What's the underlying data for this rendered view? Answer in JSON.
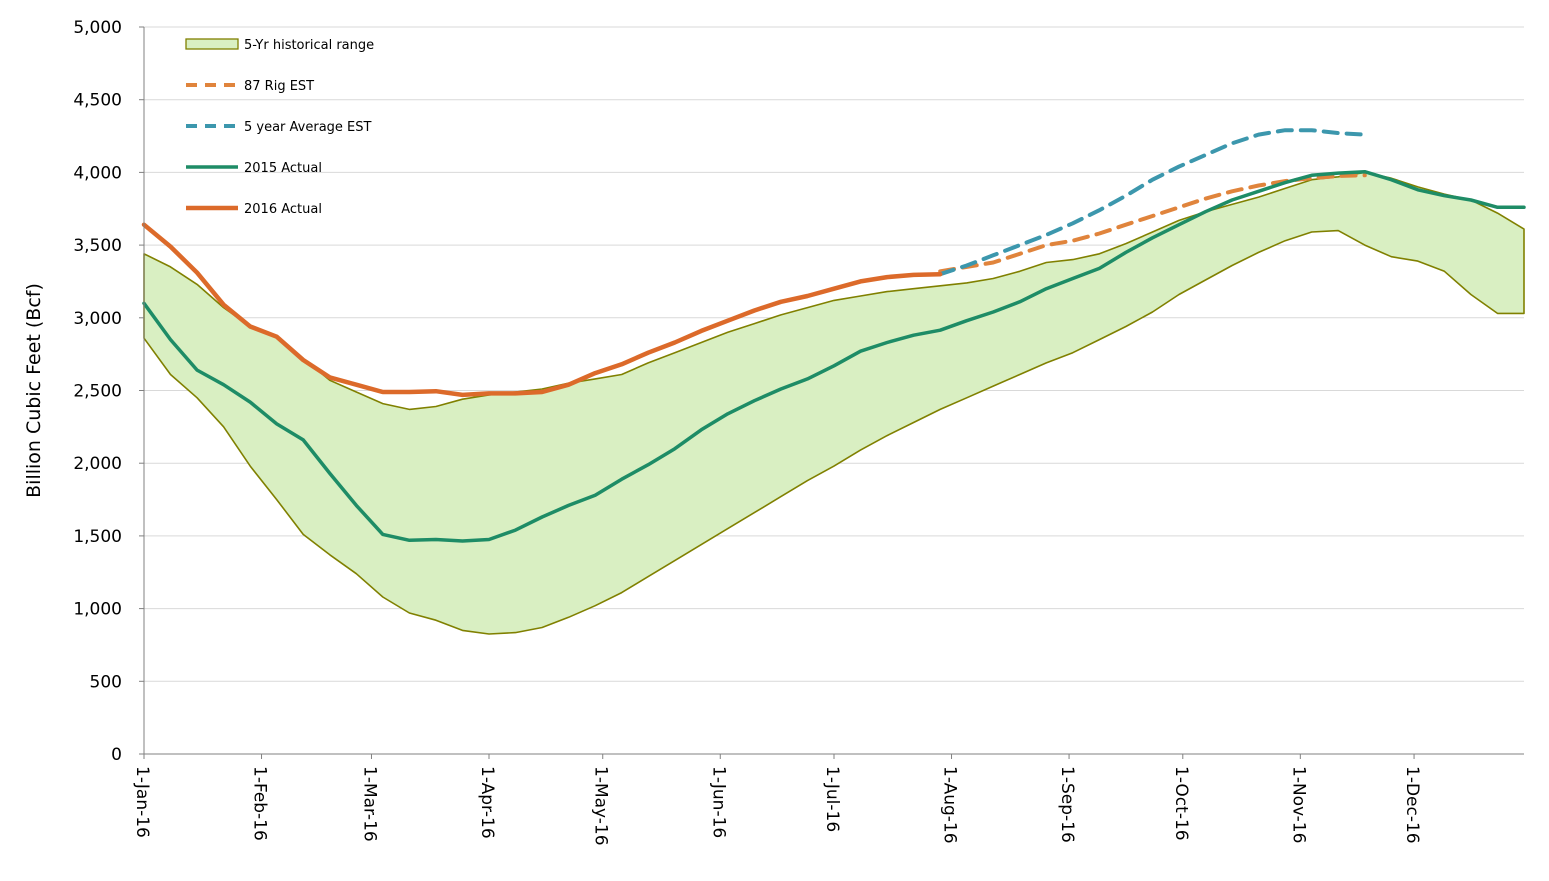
{
  "chart_data": {
    "type": "line",
    "title": "",
    "ylabel": "Billion Cubic Feet (Bcf)",
    "xlabel": "",
    "ylim": [
      0,
      5000
    ],
    "yticks": [
      0,
      500,
      1000,
      1500,
      2000,
      2500,
      3000,
      3500,
      4000,
      4500,
      5000
    ],
    "ytick_labels": [
      "0",
      "500",
      "1,000",
      "1,500",
      "2,000",
      "2,500",
      "3,000",
      "3,500",
      "4,000",
      "4,500",
      "5,000"
    ],
    "xlim": [
      "2016-01-01",
      "2016-12-30"
    ],
    "xticks": [
      "2016-01-01",
      "2016-02-01",
      "2016-03-01",
      "2016-04-01",
      "2016-05-01",
      "2016-06-01",
      "2016-07-01",
      "2016-08-01",
      "2016-09-01",
      "2016-10-01",
      "2016-11-01",
      "2016-12-01"
    ],
    "xtick_labels": [
      "1-Jan-16",
      "1-Feb-16",
      "1-Mar-16",
      "1-Apr-16",
      "1-May-16",
      "1-Jun-16",
      "1-Jul-16",
      "1-Aug-16",
      "1-Sep-16",
      "1-Oct-16",
      "1-Nov-16",
      "1-Dec-16"
    ],
    "grid": "horizontal",
    "legend_position": "top-left",
    "range": {
      "name": "5-Yr historical range",
      "fill": "#d9efc2",
      "stroke": "#808000",
      "x": [
        "2016-01-01",
        "2016-01-08",
        "2016-01-15",
        "2016-01-22",
        "2016-01-29",
        "2016-02-05",
        "2016-02-12",
        "2016-02-19",
        "2016-02-26",
        "2016-03-04",
        "2016-03-11",
        "2016-03-18",
        "2016-03-25",
        "2016-04-01",
        "2016-04-08",
        "2016-04-15",
        "2016-04-22",
        "2016-04-29",
        "2016-05-06",
        "2016-05-13",
        "2016-05-20",
        "2016-05-27",
        "2016-06-03",
        "2016-06-10",
        "2016-06-17",
        "2016-06-24",
        "2016-07-01",
        "2016-07-08",
        "2016-07-15",
        "2016-07-22",
        "2016-07-29",
        "2016-08-05",
        "2016-08-12",
        "2016-08-19",
        "2016-08-26",
        "2016-09-02",
        "2016-09-09",
        "2016-09-16",
        "2016-09-23",
        "2016-09-30",
        "2016-10-07",
        "2016-10-14",
        "2016-10-21",
        "2016-10-28",
        "2016-11-04",
        "2016-11-11",
        "2016-11-18",
        "2016-11-25",
        "2016-12-02",
        "2016-12-09",
        "2016-12-16",
        "2016-12-23",
        "2016-12-30"
      ],
      "low": [
        2860,
        2610,
        2450,
        2250,
        1980,
        1750,
        1510,
        1370,
        1240,
        1080,
        970,
        920,
        850,
        825,
        835,
        870,
        940,
        1020,
        1110,
        1220,
        1330,
        1440,
        1550,
        1660,
        1770,
        1880,
        1980,
        2090,
        2190,
        2280,
        2370,
        2450,
        2530,
        2610,
        2690,
        2760,
        2850,
        2940,
        3040,
        3160,
        3260,
        3360,
        3450,
        3530,
        3590,
        3600,
        3500,
        3420,
        3390,
        3320,
        3160,
        3030,
        3030
      ],
      "high": [
        3440,
        3350,
        3230,
        3070,
        2940,
        2870,
        2720,
        2570,
        2490,
        2410,
        2370,
        2390,
        2440,
        2470,
        2490,
        2510,
        2550,
        2580,
        2610,
        2690,
        2760,
        2830,
        2900,
        2960,
        3020,
        3070,
        3120,
        3150,
        3180,
        3200,
        3220,
        3240,
        3270,
        3320,
        3380,
        3400,
        3440,
        3510,
        3590,
        3670,
        3730,
        3780,
        3830,
        3890,
        3950,
        3970,
        4000,
        3960,
        3900,
        3850,
        3810,
        3720,
        3610
      ]
    },
    "series": [
      {
        "name": "87 Rig EST",
        "color": "#e0843c",
        "dash": true,
        "x": [
          "2016-07-29",
          "2016-08-05",
          "2016-08-12",
          "2016-08-19",
          "2016-08-26",
          "2016-09-02",
          "2016-09-09",
          "2016-09-16",
          "2016-09-23",
          "2016-09-30",
          "2016-10-07",
          "2016-10-14",
          "2016-10-21",
          "2016-10-28",
          "2016-11-04",
          "2016-11-11",
          "2016-11-18"
        ],
        "values": [
          3320,
          3350,
          3380,
          3440,
          3500,
          3530,
          3580,
          3640,
          3700,
          3760,
          3820,
          3870,
          3910,
          3940,
          3960,
          3975,
          3980
        ]
      },
      {
        "name": "5 year Average EST",
        "color": "#3c97ad",
        "dash": true,
        "x": [
          "2016-07-29",
          "2016-08-05",
          "2016-08-12",
          "2016-08-19",
          "2016-08-26",
          "2016-09-02",
          "2016-09-09",
          "2016-09-16",
          "2016-09-23",
          "2016-09-30",
          "2016-10-07",
          "2016-10-14",
          "2016-10-21",
          "2016-10-28",
          "2016-11-04",
          "2016-11-11",
          "2016-11-18"
        ],
        "values": [
          3300,
          3360,
          3430,
          3500,
          3570,
          3650,
          3740,
          3840,
          3950,
          4040,
          4120,
          4200,
          4260,
          4290,
          4290,
          4270,
          4260
        ]
      },
      {
        "name": "2015 Actual",
        "color": "#1e8c66",
        "dash": false,
        "x": [
          "2016-01-01",
          "2016-01-08",
          "2016-01-15",
          "2016-01-22",
          "2016-01-29",
          "2016-02-05",
          "2016-02-12",
          "2016-02-19",
          "2016-02-26",
          "2016-03-04",
          "2016-03-11",
          "2016-03-18",
          "2016-03-25",
          "2016-04-01",
          "2016-04-08",
          "2016-04-15",
          "2016-04-22",
          "2016-04-29",
          "2016-05-06",
          "2016-05-13",
          "2016-05-20",
          "2016-05-27",
          "2016-06-03",
          "2016-06-10",
          "2016-06-17",
          "2016-06-24",
          "2016-07-01",
          "2016-07-08",
          "2016-07-15",
          "2016-07-22",
          "2016-07-29",
          "2016-08-05",
          "2016-08-12",
          "2016-08-19",
          "2016-08-26",
          "2016-09-02",
          "2016-09-09",
          "2016-09-16",
          "2016-09-23",
          "2016-09-30",
          "2016-10-07",
          "2016-10-14",
          "2016-10-21",
          "2016-10-28",
          "2016-11-04",
          "2016-11-11",
          "2016-11-18",
          "2016-11-25",
          "2016-12-02",
          "2016-12-09",
          "2016-12-16",
          "2016-12-23",
          "2016-12-30"
        ],
        "values": [
          3100,
          2850,
          2640,
          2540,
          2420,
          2270,
          2160,
          1930,
          1710,
          1510,
          1470,
          1475,
          1465,
          1475,
          1540,
          1630,
          1710,
          1780,
          1890,
          1990,
          2100,
          2230,
          2340,
          2430,
          2510,
          2580,
          2670,
          2770,
          2830,
          2880,
          2915,
          2980,
          3040,
          3110,
          3200,
          3270,
          3340,
          3450,
          3550,
          3640,
          3730,
          3810,
          3870,
          3930,
          3980,
          3995,
          4005,
          3950,
          3880,
          3840,
          3810,
          3760,
          3760
        ]
      },
      {
        "name": "2016 Actual",
        "color": "#dc6a2a",
        "dash": false,
        "x": [
          "2016-01-01",
          "2016-01-08",
          "2016-01-15",
          "2016-01-22",
          "2016-01-29",
          "2016-02-05",
          "2016-02-12",
          "2016-02-19",
          "2016-02-26",
          "2016-03-04",
          "2016-03-11",
          "2016-03-18",
          "2016-03-25",
          "2016-04-01",
          "2016-04-08",
          "2016-04-15",
          "2016-04-22",
          "2016-04-29",
          "2016-05-06",
          "2016-05-13",
          "2016-05-20",
          "2016-05-27",
          "2016-06-03",
          "2016-06-10",
          "2016-06-17",
          "2016-06-24",
          "2016-07-01",
          "2016-07-08",
          "2016-07-15",
          "2016-07-22",
          "2016-07-29"
        ],
        "values": [
          3640,
          3490,
          3310,
          3090,
          2940,
          2870,
          2710,
          2590,
          2540,
          2490,
          2490,
          2495,
          2470,
          2480,
          2480,
          2490,
          2540,
          2620,
          2680,
          2760,
          2830,
          2910,
          2980,
          3050,
          3110,
          3150,
          3200,
          3250,
          3280,
          3295,
          3300
        ]
      }
    ],
    "legend": [
      "5-Yr historical range",
      "87 Rig EST",
      "5 year Average EST",
      "2015 Actual",
      "2016 Actual"
    ]
  }
}
